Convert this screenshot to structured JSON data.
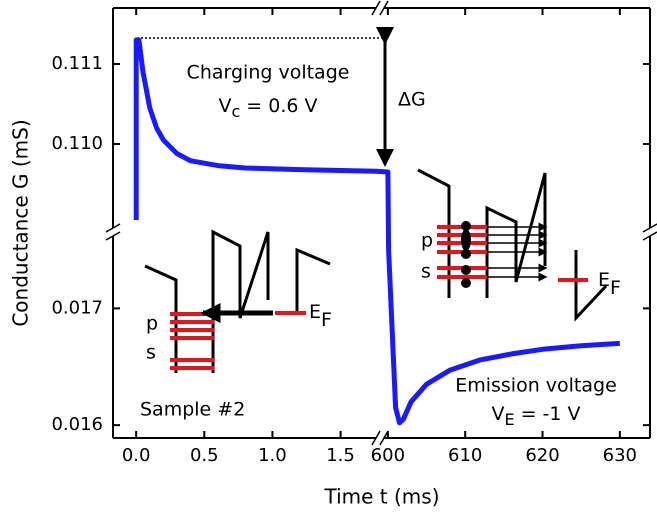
{
  "chart_data": {
    "type": "line",
    "x_label": "Time t (ms)",
    "y_label": "Conductance G (mS)",
    "xlim": [
      -0.17,
      633.9
    ],
    "xbreak": [
      1.76,
      599.5
    ],
    "ylim": [
      0.01589,
      0.1117
    ],
    "ybreak": [
      0.01762,
      0.10895
    ],
    "xticks": [
      {
        "value": 0,
        "label": "0.0"
      },
      0.5,
      {
        "value": 1,
        "label": "1.0"
      },
      1.5,
      600,
      610,
      620,
      630
    ],
    "yticks": [
      0.016,
      0.017,
      {
        "value": 0.11,
        "label": "0.110"
      },
      0.111
    ],
    "series": [
      {
        "color": "#1a1aff",
        "x": [
          0,
          0,
          0.02,
          0.05,
          0.1,
          0.15,
          0.2,
          0.3,
          0.4,
          0.6,
          0.8,
          1.2,
          1.76,
          600,
          600.1,
          601,
          601.5,
          602,
          603,
          605,
          608,
          612,
          616,
          620,
          625,
          630
        ],
        "values": [
          0.10905,
          0.1113,
          0.1113,
          0.1109,
          0.11045,
          0.1102,
          0.11005,
          0.10988,
          0.10979,
          0.10973,
          0.1097,
          0.10968,
          0.10966,
          0.10965,
          0.0175,
          0.01615,
          0.01602,
          0.01605,
          0.0162,
          0.01635,
          0.01647,
          0.01656,
          0.01661,
          0.01665,
          0.01668,
          0.0167
        ]
      }
    ],
    "annotations": {
      "charging": "Charging voltage",
      "vc": [
        "V",
        "c",
        " = 0.6 V"
      ],
      "delta_g": "ΔG",
      "emission": "Emission voltage",
      "ve": [
        "V",
        "E",
        " = -1 V"
      ],
      "sample": "Sample #2",
      "insets": [
        {
          "p": "p",
          "s": "s",
          "ef": [
            "E",
            "F"
          ]
        },
        {
          "p": "p",
          "s": "s",
          "ef": [
            "E",
            "F"
          ]
        }
      ]
    }
  }
}
